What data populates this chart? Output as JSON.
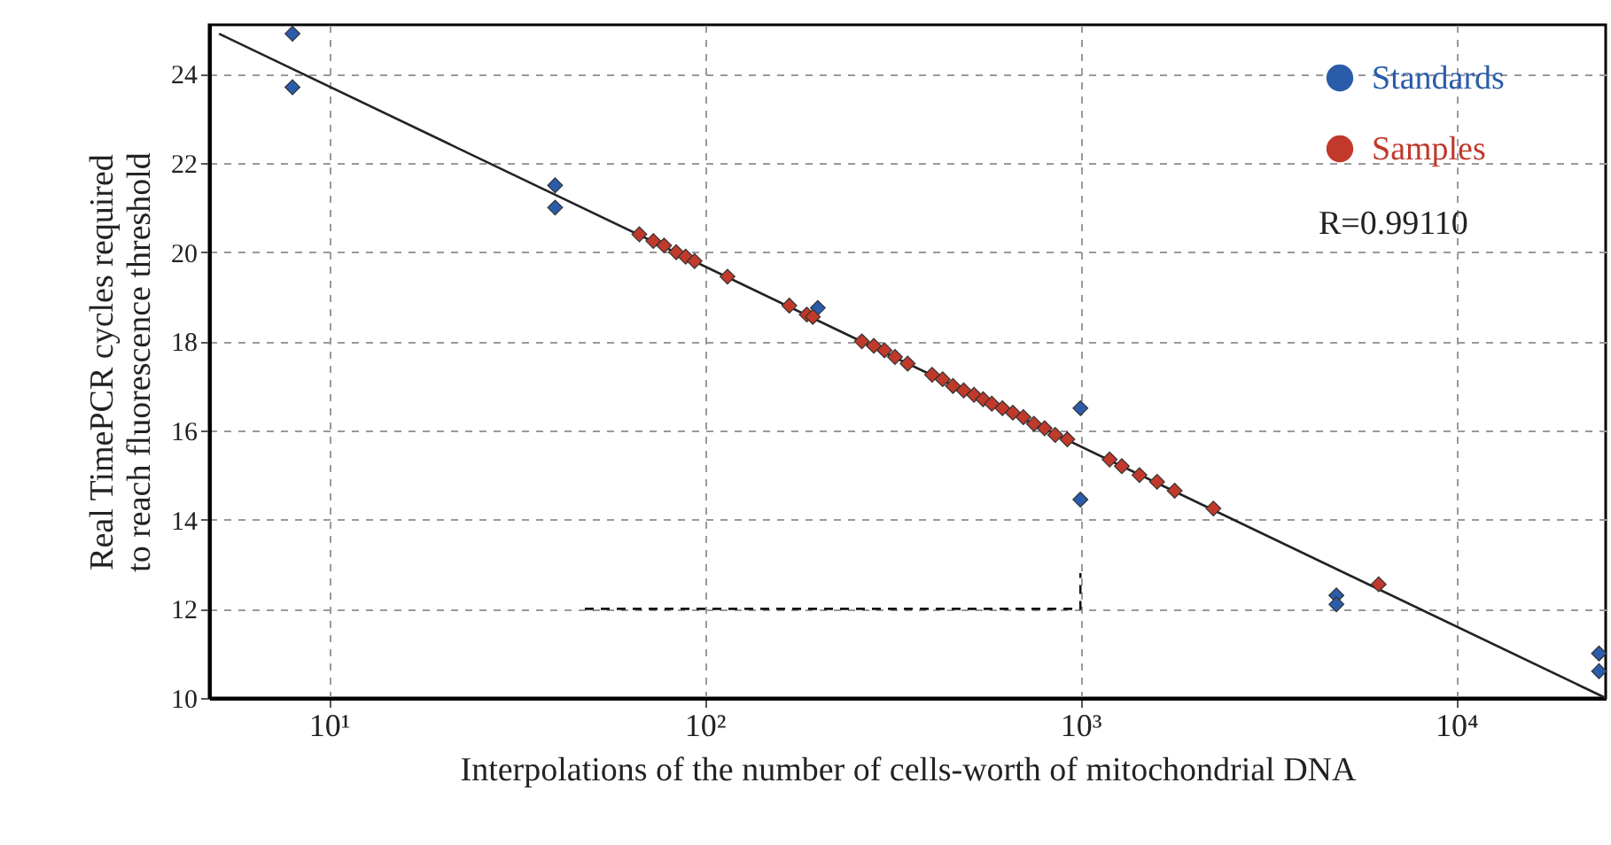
{
  "chart_data": {
    "type": "scatter",
    "xlabel": "Interpolations of the number of cells-worth of mitochondrial DNA",
    "ylabel": "Real TimePCR cycles required\nto reach fluorescence threshold",
    "log": "x",
    "grid": true,
    "legend": "top right",
    "xlim": [
      4.8,
      25000
    ],
    "ylim": [
      10,
      25.1
    ],
    "xticks": [
      {
        "value": 10,
        "label": "10¹"
      },
      {
        "value": 100,
        "label": "10²"
      },
      {
        "value": 1000,
        "label": "10³"
      },
      {
        "value": 10000,
        "label": "10⁴"
      }
    ],
    "yticks": [
      10,
      12,
      14,
      16,
      18,
      20,
      22,
      24
    ],
    "annotations": [
      "R=0.99110"
    ],
    "series": [
      {
        "type": "line",
        "color": "#222222",
        "line_style": "solid",
        "x": [
          5.1,
          25000
        ],
        "values": [
          24.9,
          10.0
        ]
      },
      {
        "type": "line",
        "color": "#111111",
        "line_style": "dashed",
        "x": [
          48,
          1000,
          1000
        ],
        "values": [
          12,
          12,
          12.8
        ]
      },
      {
        "name": "Standards",
        "marker": "diamond",
        "color": "#2a5caa",
        "x": [
          8,
          8,
          40,
          40,
          200,
          1000,
          1000,
          4800,
          4800,
          24000,
          24000
        ],
        "values": [
          24.9,
          23.7,
          21.5,
          21.0,
          18.75,
          16.5,
          14.45,
          12.3,
          12.1,
          11.0,
          10.6
        ]
      },
      {
        "name": "Samples",
        "marker": "diamond",
        "color": "#c0392b",
        "x": [
          67,
          73,
          78,
          84,
          89,
          94,
          115,
          168,
          187,
          194,
          262,
          282,
          301,
          321,
          347,
          403,
          430,
          458,
          489,
          521,
          551,
          581,
          620,
          661,
          705,
          752,
          803,
          857,
          923,
          1196,
          1289,
          1436,
          1600,
          1782,
          2259,
          6220
        ],
        "values": [
          20.4,
          20.25,
          20.15,
          20.0,
          19.9,
          19.8,
          19.45,
          18.8,
          18.6,
          18.55,
          18.0,
          17.9,
          17.8,
          17.65,
          17.5,
          17.25,
          17.15,
          17.0,
          16.9,
          16.8,
          16.7,
          16.6,
          16.5,
          16.4,
          16.3,
          16.15,
          16.05,
          15.9,
          15.8,
          15.35,
          15.2,
          15.0,
          14.85,
          14.65,
          14.25,
          12.55
        ]
      }
    ]
  }
}
